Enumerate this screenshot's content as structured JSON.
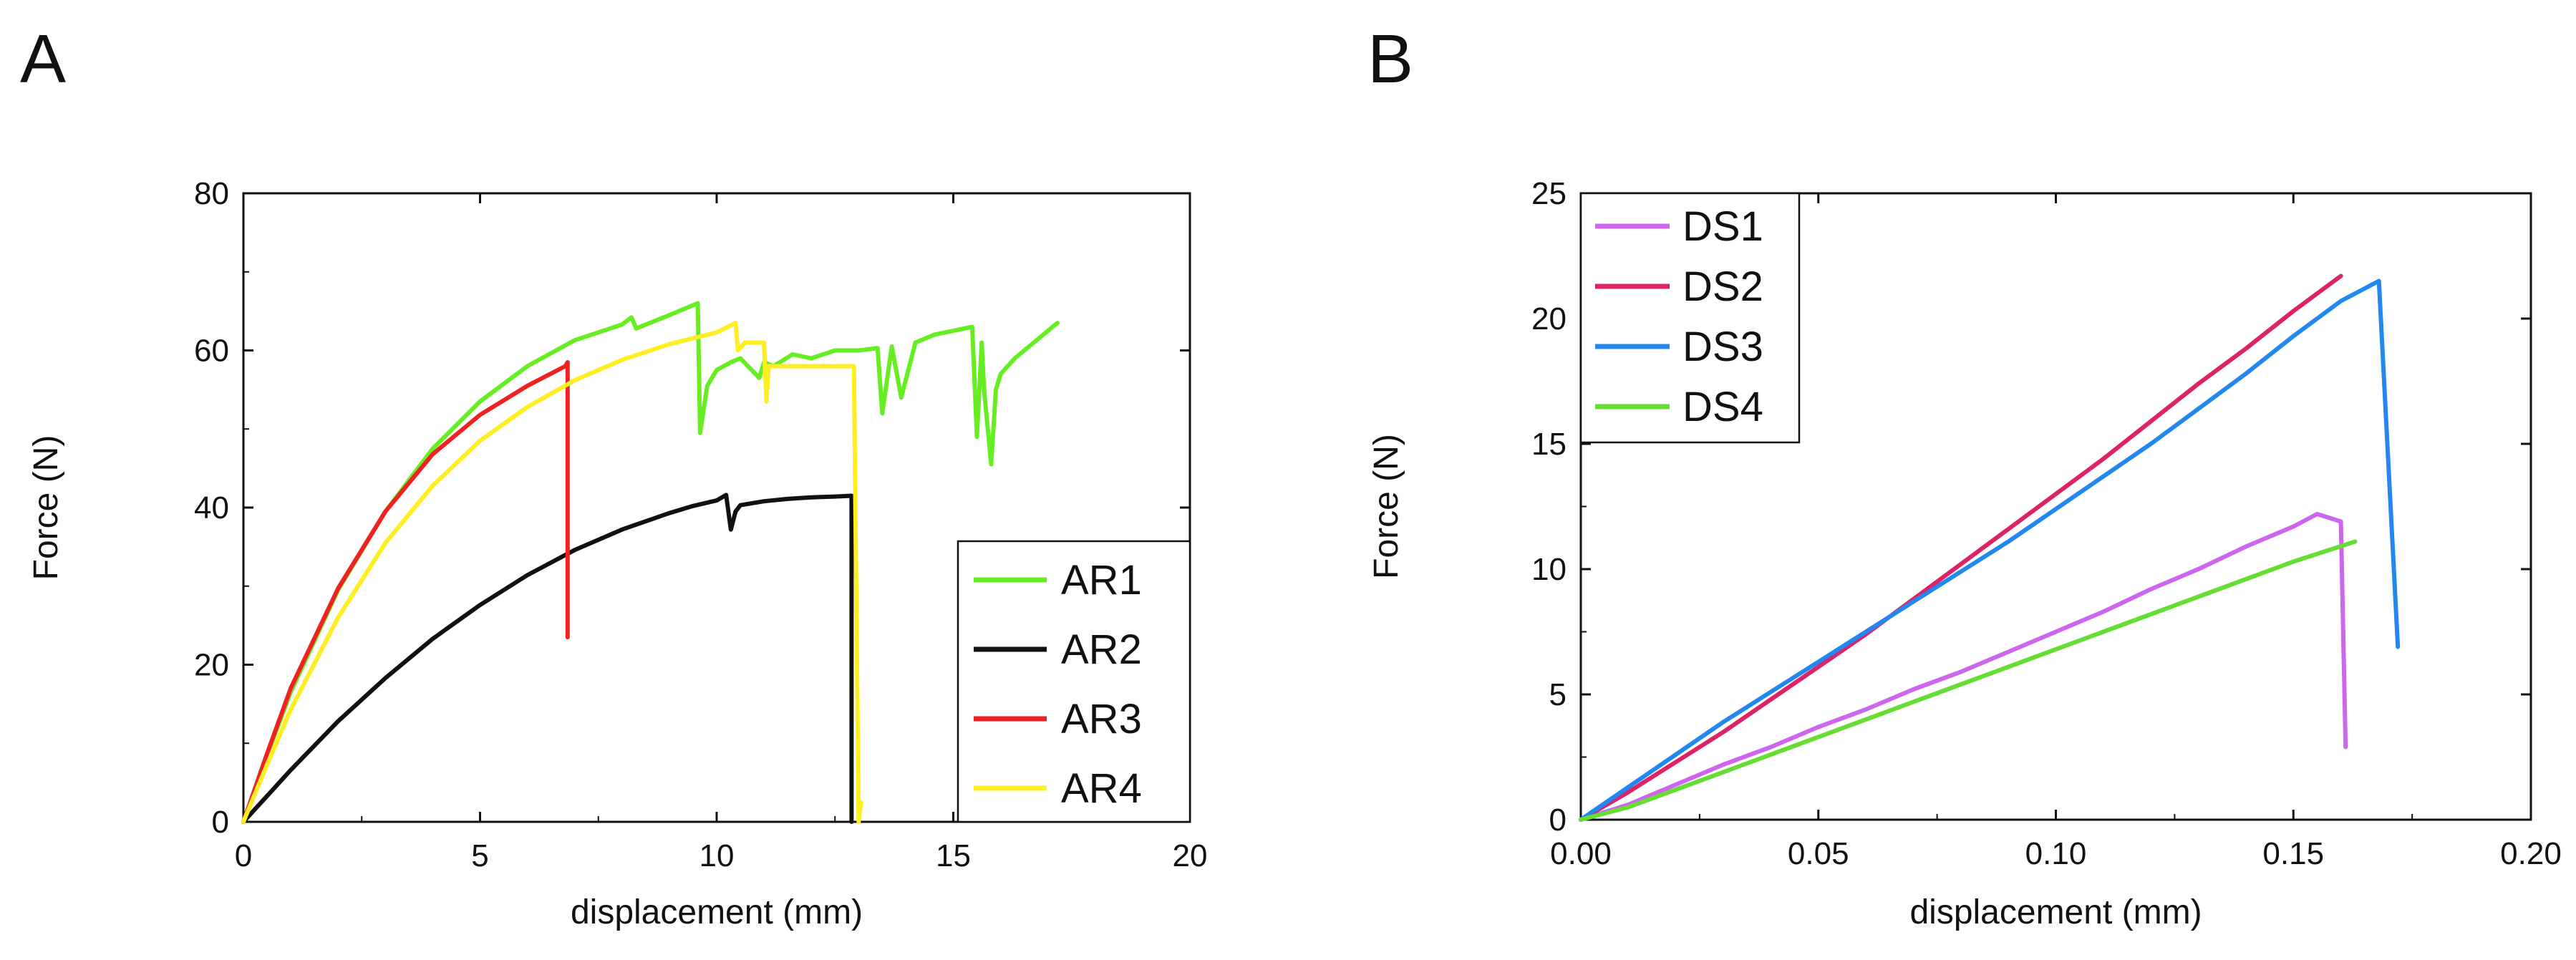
{
  "chart_data": [
    {
      "panel": "A",
      "type": "line",
      "xlabel": "displacement (mm)",
      "ylabel": "Force (N)",
      "xlim": [
        0,
        20
      ],
      "ylim": [
        0,
        80
      ],
      "xticks": [
        0,
        5,
        10,
        15,
        20
      ],
      "yticks": [
        0,
        20,
        40,
        60,
        80
      ],
      "xtick_labels": [
        "0",
        "5",
        "10",
        "15",
        "20"
      ],
      "ytick_labels": [
        "0",
        "20",
        "40",
        "60",
        "80"
      ],
      "legend": "bottom-right",
      "series": [
        {
          "name": "AR1",
          "color": "#66ee22",
          "x": [
            0,
            0.5,
            1,
            2,
            3,
            4,
            5,
            6,
            7,
            7.5,
            8,
            8.2,
            8.3,
            9,
            9.6,
            9.65,
            9.8,
            10.0,
            10.3,
            10.5,
            10.9,
            11.0,
            11.2,
            11.6,
            12,
            12.5,
            13,
            13.4,
            13.5,
            13.7,
            13.9,
            14.2,
            14.6,
            15,
            15.4,
            15.5,
            15.6,
            15.65,
            15.8,
            15.9,
            16.0,
            16.3,
            16.7,
            17.2
          ],
          "y": [
            0,
            8.5,
            16.5,
            29.5,
            39.5,
            47.5,
            53.5,
            58,
            61.3,
            62.3,
            63.3,
            64.2,
            62.8,
            64.5,
            66,
            49.5,
            55.5,
            57.5,
            58.5,
            59,
            56.5,
            58.5,
            58,
            59.5,
            59,
            60,
            60,
            60.3,
            52,
            60.5,
            54,
            61,
            62,
            62.5,
            63,
            49,
            61,
            55,
            45.5,
            55,
            57,
            59,
            61,
            63.5
          ]
        },
        {
          "name": "AR2",
          "color": "#111111",
          "x": [
            0,
            0.5,
            1,
            2,
            3,
            4,
            5,
            6,
            7,
            8,
            9,
            9.5,
            10,
            10.2,
            10.3,
            10.4,
            10.5,
            11,
            11.5,
            12,
            12.5,
            12.85,
            12.85
          ],
          "y": [
            0,
            3.3,
            6.6,
            12.8,
            18.3,
            23.3,
            27.6,
            31.4,
            34.6,
            37.2,
            39.3,
            40.2,
            40.9,
            41.6,
            37.2,
            39.5,
            40.3,
            40.8,
            41.1,
            41.3,
            41.4,
            41.5,
            0
          ]
        },
        {
          "name": "AR3",
          "color": "#ee2222",
          "x": [
            0,
            0.5,
            1,
            2,
            3,
            4,
            5,
            6,
            6.8,
            6.85,
            6.85
          ],
          "y": [
            0,
            8.7,
            17,
            29.7,
            39.5,
            46.8,
            51.8,
            55.5,
            58,
            58.5,
            23.5
          ]
        },
        {
          "name": "AR4",
          "color": "#ffee22",
          "x": [
            0,
            0.5,
            1,
            2,
            3,
            4,
            5,
            6,
            7,
            8,
            9,
            10,
            10.4,
            10.45,
            10.6,
            11.0,
            11.05,
            11.1,
            12,
            12.9,
            13.0,
            13.05
          ],
          "y": [
            0,
            7.3,
            14.3,
            26,
            35.5,
            42.8,
            48.5,
            52.8,
            56.2,
            58.8,
            60.8,
            62.3,
            63.5,
            60,
            61,
            61,
            53.5,
            58,
            58,
            58,
            0,
            2.5
          ]
        }
      ]
    },
    {
      "panel": "B",
      "type": "line",
      "xlabel": "displacement (mm)",
      "ylabel": "Force (N)",
      "xlim": [
        0,
        0.2
      ],
      "ylim": [
        0,
        25
      ],
      "xticks": [
        0,
        0.05,
        0.1,
        0.15,
        0.2
      ],
      "yticks": [
        0,
        5,
        10,
        15,
        20,
        25
      ],
      "xtick_labels": [
        "0.00",
        "0.05",
        "0.10",
        "0.15",
        "0.20"
      ],
      "ytick_labels": [
        "0",
        "5",
        "10",
        "15",
        "20",
        "25"
      ],
      "legend": "top-left",
      "series": [
        {
          "name": "DS1",
          "color": "#cc66ee",
          "x": [
            0,
            0.01,
            0.02,
            0.03,
            0.04,
            0.05,
            0.06,
            0.07,
            0.08,
            0.09,
            0.1,
            0.11,
            0.12,
            0.13,
            0.14,
            0.15,
            0.155,
            0.16,
            0.161
          ],
          "y": [
            0,
            0.6,
            1.4,
            2.2,
            2.9,
            3.7,
            4.4,
            5.2,
            5.9,
            6.7,
            7.5,
            8.3,
            9.2,
            10.0,
            10.9,
            11.7,
            12.2,
            11.9,
            2.9
          ]
        },
        {
          "name": "DS2",
          "color": "#dd2266",
          "x": [
            0,
            0.01,
            0.02,
            0.03,
            0.04,
            0.05,
            0.06,
            0.07,
            0.08,
            0.09,
            0.1,
            0.11,
            0.12,
            0.13,
            0.14,
            0.15,
            0.16
          ],
          "y": [
            0,
            1.1,
            2.3,
            3.5,
            4.8,
            6.1,
            7.4,
            8.8,
            10.2,
            11.6,
            13.0,
            14.4,
            15.9,
            17.4,
            18.8,
            20.3,
            21.7
          ]
        },
        {
          "name": "DS3",
          "color": "#2288ee",
          "x": [
            0,
            0.01,
            0.02,
            0.03,
            0.04,
            0.05,
            0.06,
            0.07,
            0.08,
            0.09,
            0.1,
            0.11,
            0.12,
            0.13,
            0.14,
            0.15,
            0.16,
            0.168,
            0.172
          ],
          "y": [
            0,
            1.3,
            2.6,
            3.9,
            5.1,
            6.3,
            7.5,
            8.7,
            9.9,
            11.1,
            12.4,
            13.7,
            15.0,
            16.4,
            17.8,
            19.3,
            20.7,
            21.5,
            6.9
          ]
        },
        {
          "name": "DS4",
          "color": "#66dd33",
          "x": [
            0,
            0.01,
            0.02,
            0.03,
            0.04,
            0.05,
            0.06,
            0.07,
            0.08,
            0.09,
            0.1,
            0.11,
            0.12,
            0.13,
            0.14,
            0.15,
            0.163
          ],
          "y": [
            0,
            0.5,
            1.2,
            1.9,
            2.6,
            3.3,
            4.0,
            4.7,
            5.4,
            6.1,
            6.8,
            7.5,
            8.2,
            8.9,
            9.6,
            10.3,
            11.1
          ]
        }
      ]
    }
  ]
}
